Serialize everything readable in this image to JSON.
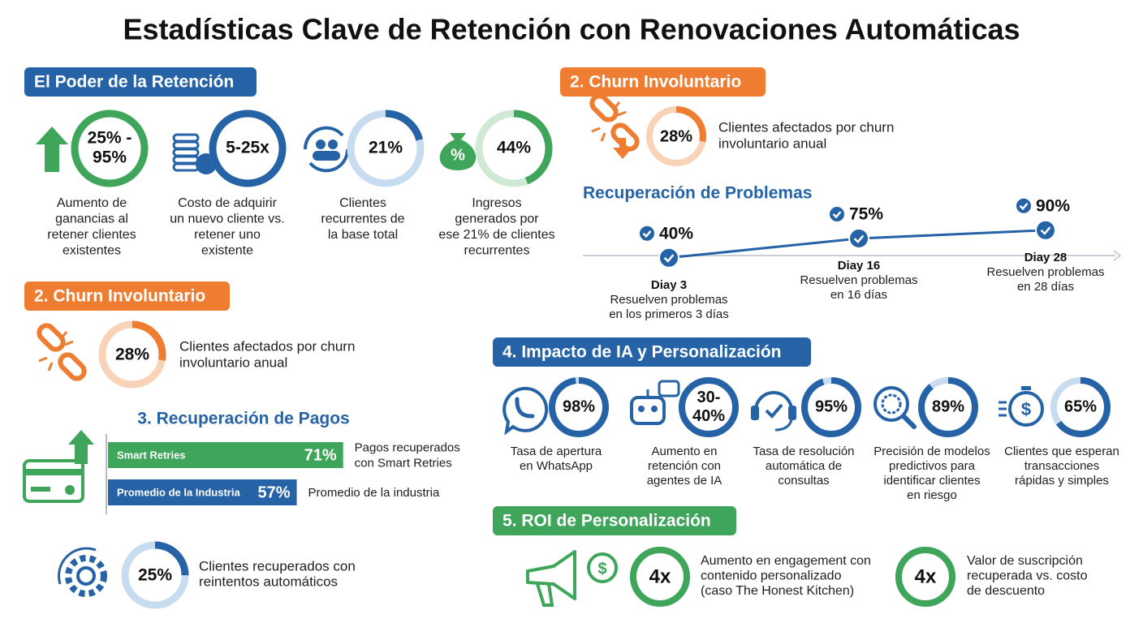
{
  "title": "Estadísticas Clave de Retención con Renovaciones Automáticas",
  "retention": {
    "heading": "El Poder de la Retención",
    "items": [
      {
        "label": [
          "25% -",
          "95%"
        ],
        "caption": [
          "Aumento de",
          "ganancias al",
          "retener clientes",
          "existentes"
        ]
      },
      {
        "label": [
          "5-25x"
        ],
        "caption": [
          "Costo de adquirir",
          "un nuevo cliente vs.",
          "retener uno",
          "existente"
        ]
      },
      {
        "value": 21,
        "label": [
          "21%"
        ],
        "caption": [
          "Clientes",
          "recurrentes de",
          "la base total"
        ]
      },
      {
        "value": 44,
        "label": [
          "44%"
        ],
        "caption": [
          "Ingresos",
          "generados por",
          "ese 21% de clientes",
          "recurrentes"
        ]
      }
    ]
  },
  "churn_left": {
    "heading": "2. Churn Involuntario",
    "value": 28,
    "label": "28%",
    "caption": [
      "Clientes afectados por churn",
      "involuntario anual"
    ]
  },
  "payments": {
    "heading": "3. Recuperación de Pagos",
    "bars": [
      {
        "name": "Smart Retries",
        "value": 71,
        "label": "71%",
        "caption": [
          "Pagos recuperados",
          "con Smart Retries"
        ]
      },
      {
        "name": "Promedio de la Industria",
        "value": 57,
        "label": "57%",
        "caption": [
          "Promedio de la industria"
        ]
      }
    ]
  },
  "retries": {
    "value": 25,
    "label": "25%",
    "caption": [
      "Clientes recuperados con",
      "reintentos automáticos"
    ]
  },
  "churn_right": {
    "heading": "2. Churn Involuntario",
    "value": 28,
    "label": "28%",
    "caption": [
      "Clientes afectados por churn",
      "involuntario anual"
    ]
  },
  "recovery": {
    "heading": "Recuperación de Problemas",
    "points": [
      {
        "value": 40,
        "label": "40%",
        "day": "Diay 3",
        "caption": [
          "Resuelven problemas",
          "en los primeros 3 días"
        ]
      },
      {
        "value": 75,
        "label": "75%",
        "day": "Diay 16",
        "caption": [
          "Resuelven problemas",
          "en 16 días"
        ]
      },
      {
        "value": 90,
        "label": "90%",
        "day": "Diay 28",
        "caption": [
          "Resuelven problemas",
          "en 28 días"
        ]
      }
    ]
  },
  "ai": {
    "heading": "4. Impacto de IA y Personalización",
    "items": [
      {
        "value": 98,
        "label": [
          "98%"
        ],
        "caption": [
          "Tasa de apertura",
          "en WhatsApp"
        ]
      },
      {
        "label": [
          "30-",
          "40%"
        ],
        "caption": [
          "Aumento en",
          "retención con",
          "agentes de IA"
        ]
      },
      {
        "value": 95,
        "label": [
          "95%"
        ],
        "caption": [
          "Tasa de resolución",
          "automática de",
          "consultas"
        ]
      },
      {
        "value": 89,
        "label": [
          "89%"
        ],
        "caption": [
          "Precisión de modelos",
          "predictivos para",
          "identificar clientes",
          "en riesgo"
        ]
      },
      {
        "value": 65,
        "label": [
          "65%"
        ],
        "caption": [
          "Clientes que esperan",
          "transacciones",
          "rápidas y simples"
        ]
      }
    ]
  },
  "roi": {
    "heading": "5. ROI de Personalización",
    "items": [
      {
        "label": "4x",
        "caption": [
          "Aumento en engagement con",
          "contenido personalizado",
          "(caso The Honest Kitchen)"
        ]
      },
      {
        "label": "4x",
        "caption": [
          "Valor de suscripción",
          "recuperada vs. costo",
          "de descuento"
        ]
      }
    ]
  }
}
